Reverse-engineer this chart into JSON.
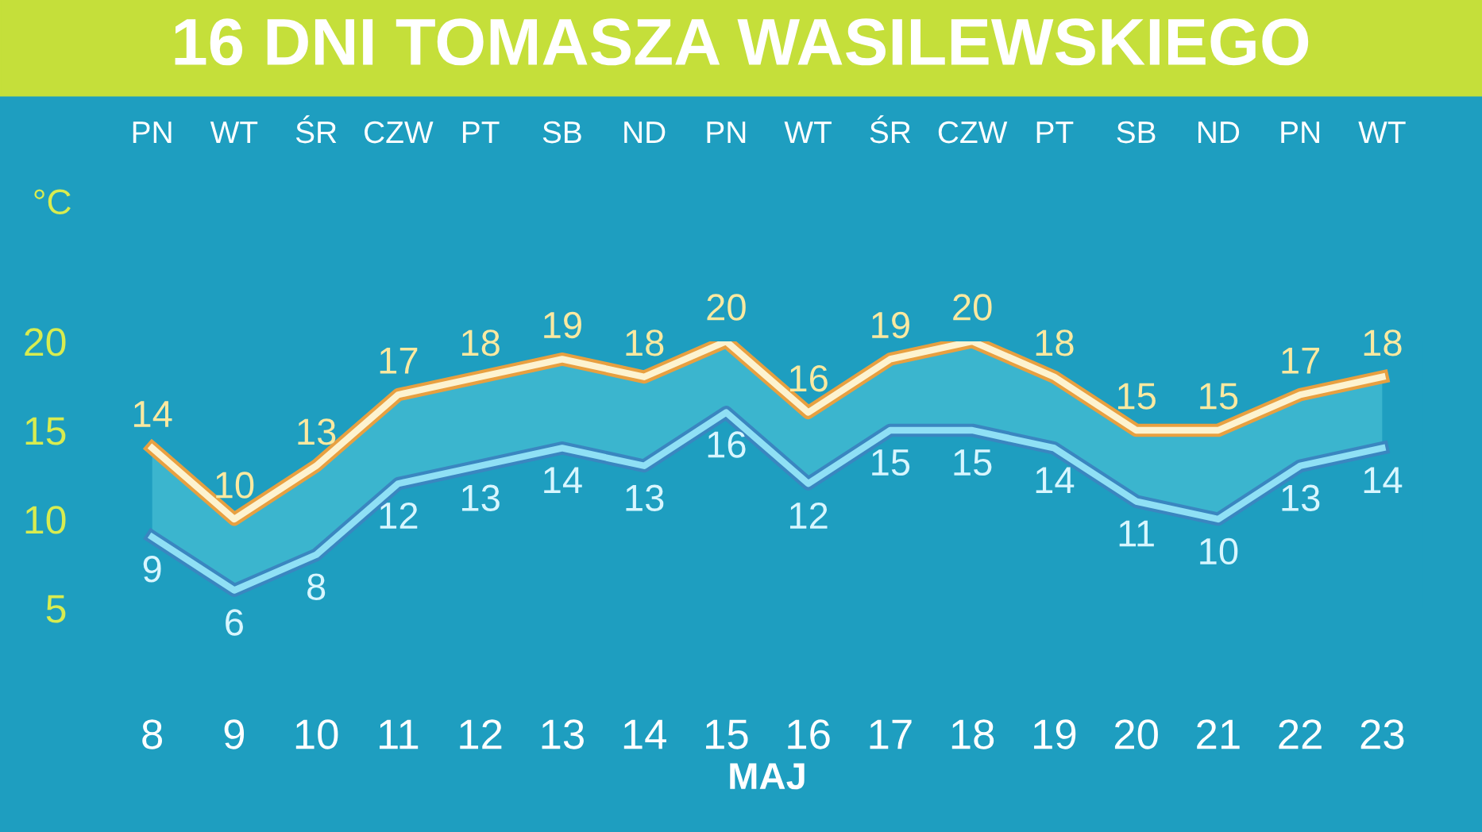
{
  "chart_data": {
    "type": "line",
    "title": "16 DNI TOMASZA WASILEWSKIEGO",
    "xlabel": "MAJ",
    "ylabel": "°C",
    "categories": [
      "8",
      "9",
      "10",
      "11",
      "12",
      "13",
      "14",
      "15",
      "16",
      "17",
      "18",
      "19",
      "20",
      "21",
      "22",
      "23"
    ],
    "annotations": [
      "PN",
      "WT",
      "ŚR",
      "CZW",
      "PT",
      "SB",
      "ND",
      "PN",
      "WT",
      "ŚR",
      "CZW",
      "PT",
      "SB",
      "ND",
      "PN",
      "WT"
    ],
    "series": [
      {
        "color": "#fdf3d0",
        "values": [
          14,
          10,
          13,
          17,
          18,
          19,
          18,
          20,
          16,
          19,
          20,
          18,
          15,
          15,
          17,
          18
        ]
      },
      {
        "color": "#8fe0f5",
        "values": [
          9,
          6,
          8,
          12,
          13,
          14,
          13,
          16,
          12,
          15,
          15,
          14,
          11,
          10,
          13,
          14
        ]
      }
    ],
    "ylim": [
      5,
      20
    ],
    "yticks": [
      5,
      10,
      15,
      20
    ],
    "data_labels": true,
    "grid": false,
    "legend": false,
    "marker": "none",
    "line_style": "solid"
  }
}
